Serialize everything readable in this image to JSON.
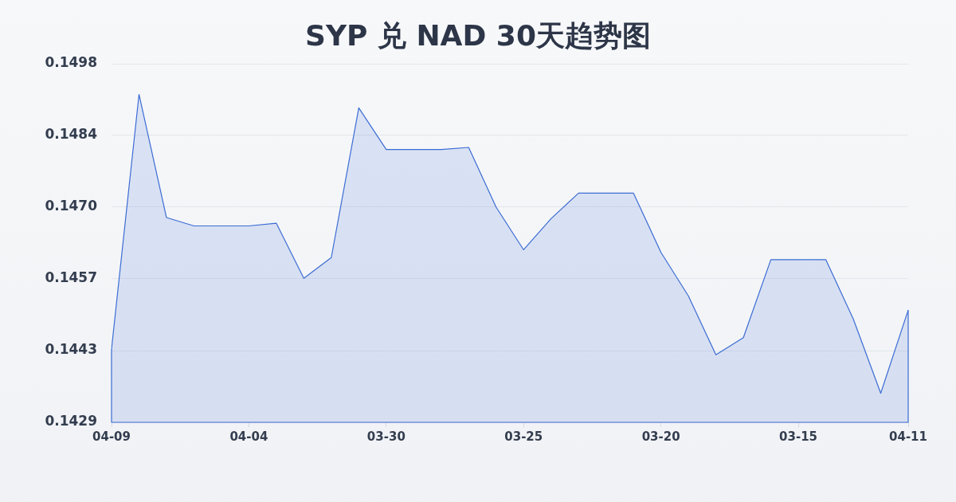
{
  "chart_data": {
    "type": "area",
    "title": "SYP 兑 NAD 30天趋势图",
    "categories": [
      "04-09",
      null,
      null,
      null,
      null,
      "04-04",
      null,
      null,
      null,
      null,
      "03-30",
      null,
      null,
      null,
      null,
      "03-25",
      null,
      null,
      null,
      null,
      "03-20",
      null,
      null,
      null,
      null,
      "03-15",
      null,
      null,
      null,
      "04-11"
    ],
    "values": [
      0.14431,
      0.14921,
      0.14684,
      0.14668,
      0.14668,
      0.14668,
      0.14673,
      0.14567,
      0.14607,
      0.14895,
      0.14815,
      0.14815,
      0.14815,
      0.14819,
      0.14704,
      0.14622,
      0.14682,
      0.14731,
      0.14731,
      0.14731,
      0.14617,
      0.14533,
      0.1442,
      0.14453,
      0.14603,
      0.14603,
      0.14603,
      0.14489,
      0.14346,
      0.14506
    ],
    "color": "#3b6cd4",
    "ylim": [
      0.1429,
      0.1498
    ],
    "yticks": [
      0.1429,
      {
        "value": 0.14428,
        "label": "0.1443"
      },
      {
        "value": 0.14566,
        "label": "0.1457"
      },
      {
        "value": 0.14704,
        "label": "0.1470"
      },
      {
        "value": 0.14842,
        "label": "0.1484"
      },
      0.1498
    ],
    "grid": "y",
    "marker": "none",
    "line_style": "solid"
  }
}
